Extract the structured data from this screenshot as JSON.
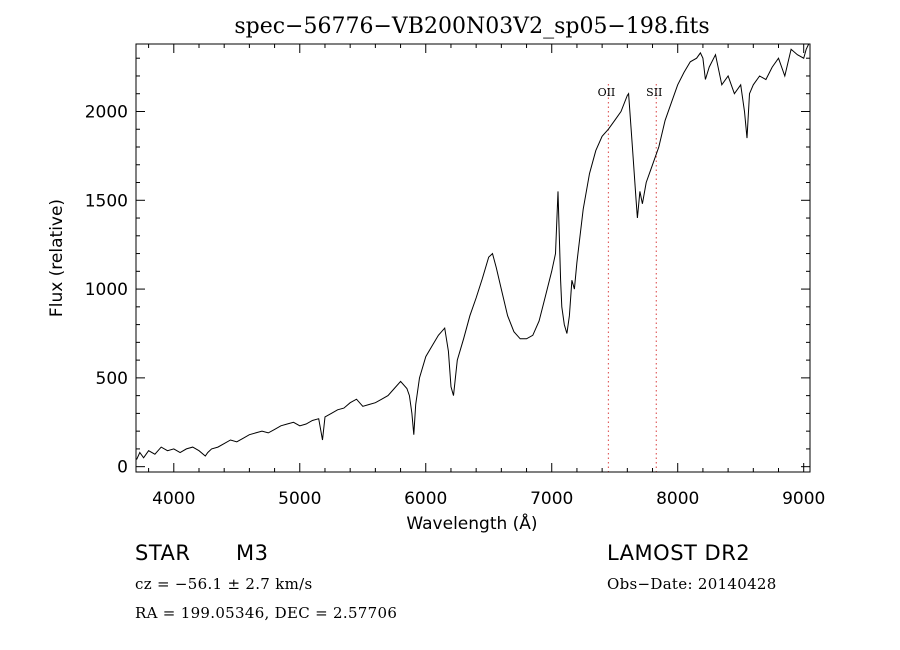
{
  "chart_data": {
    "type": "line",
    "title": "spec−56776−VB200N03V2_sp05−198.fits",
    "xlabel": "Wavelength (Å)",
    "ylabel": "Flux (relative)",
    "xlim": [
      3700,
      9050
    ],
    "ylim": [
      -30,
      2380
    ],
    "xticks": [
      4000,
      5000,
      6000,
      7000,
      8000,
      9000
    ],
    "yticks": [
      0,
      500,
      1000,
      1500,
      2000
    ],
    "grid": false,
    "series": [
      {
        "x": [
          3705,
          3730,
          3760,
          3800,
          3850,
          3900,
          3950,
          4000,
          4050,
          4100,
          4150,
          4200,
          4250,
          4270,
          4300,
          4350,
          4400,
          4450,
          4500,
          4550,
          4600,
          4650,
          4700,
          4750,
          4800,
          4850,
          4900,
          4950,
          5000,
          5050,
          5100,
          5150,
          5180,
          5200,
          5250,
          5300,
          5350,
          5400,
          5450,
          5500,
          5550,
          5600,
          5650,
          5700,
          5750,
          5800,
          5850,
          5870,
          5890,
          5905,
          5920,
          5950,
          6000,
          6050,
          6100,
          6150,
          6180,
          6200,
          6220,
          6250,
          6300,
          6350,
          6400,
          6450,
          6500,
          6530,
          6560,
          6600,
          6650,
          6700,
          6750,
          6800,
          6850,
          6900,
          6950,
          7000,
          7030,
          7050,
          7060,
          7070,
          7080,
          7100,
          7120,
          7140,
          7160,
          7180,
          7200,
          7250,
          7300,
          7350,
          7400,
          7450,
          7500,
          7550,
          7600,
          7610,
          7640,
          7670,
          7680,
          7700,
          7720,
          7750,
          7800,
          7850,
          7900,
          7950,
          8000,
          8050,
          8100,
          8150,
          8180,
          8200,
          8220,
          8250,
          8300,
          8350,
          8400,
          8450,
          8500,
          8530,
          8550,
          8570,
          8600,
          8650,
          8700,
          8750,
          8800,
          8850,
          8900,
          8950,
          9000,
          9020,
          9040
        ],
        "y": [
          40,
          80,
          50,
          90,
          70,
          110,
          90,
          100,
          80,
          100,
          110,
          90,
          60,
          80,
          100,
          110,
          130,
          150,
          140,
          160,
          180,
          190,
          200,
          190,
          210,
          230,
          240,
          250,
          230,
          240,
          260,
          270,
          150,
          280,
          300,
          320,
          330,
          360,
          380,
          340,
          350,
          360,
          380,
          400,
          440,
          480,
          440,
          400,
          300,
          180,
          350,
          500,
          620,
          680,
          740,
          780,
          650,
          450,
          400,
          600,
          720,
          850,
          950,
          1060,
          1180,
          1200,
          1120,
          1000,
          850,
          760,
          720,
          720,
          740,
          820,
          960,
          1100,
          1200,
          1550,
          1300,
          1050,
          900,
          800,
          750,
          850,
          1050,
          1000,
          1150,
          1450,
          1650,
          1780,
          1860,
          1900,
          1950,
          2000,
          2090,
          2100,
          1800,
          1500,
          1400,
          1550,
          1480,
          1600,
          1700,
          1800,
          1950,
          2050,
          2150,
          2220,
          2280,
          2300,
          2330,
          2300,
          2180,
          2250,
          2320,
          2150,
          2200,
          2100,
          2150,
          2000,
          1850,
          2100,
          2150,
          2200,
          2180,
          2250,
          2300,
          2200,
          2350,
          2320,
          2300,
          2350,
          2400
        ]
      }
    ],
    "lines": [
      {
        "label": "OII",
        "x": 7450,
        "color": "#e06060"
      },
      {
        "label": "SII",
        "x": 7830,
        "color": "#e06060"
      }
    ]
  },
  "info": {
    "object_type": "STAR",
    "subclass": "M3",
    "survey": "LAMOST DR2",
    "redshift": "cz = −56.1 ± 2.7 km/s",
    "obs_date": "Obs−Date: 20140428",
    "coords": "RA = 199.05346, DEC =   2.57706"
  }
}
